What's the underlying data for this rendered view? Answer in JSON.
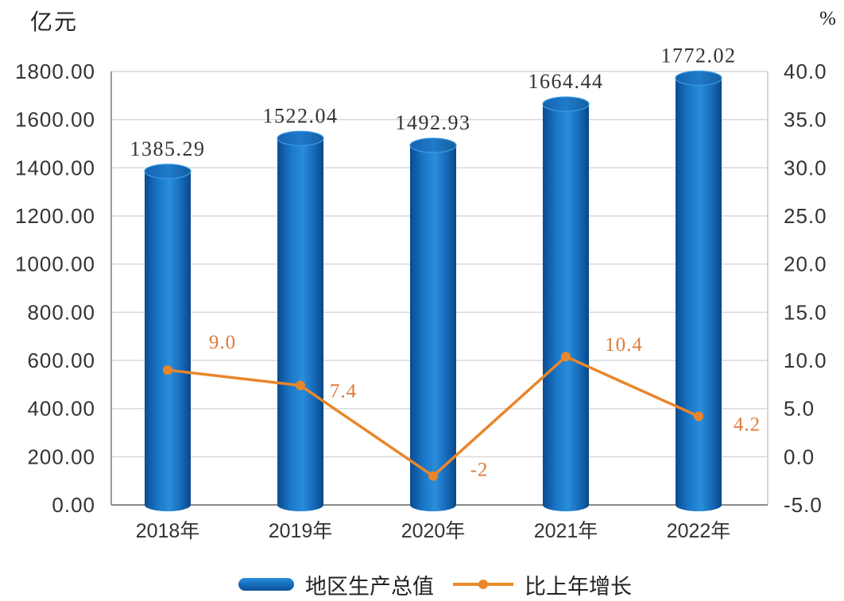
{
  "chart_data": {
    "type": "bar",
    "categories": [
      "2018年",
      "2019年",
      "2020年",
      "2021年",
      "2022年"
    ],
    "series": [
      {
        "name": "地区生产总值",
        "type": "bar",
        "axis": "left",
        "values": [
          1385.29,
          1522.04,
          1492.93,
          1664.44,
          1772.02
        ],
        "labels": [
          "1385.29",
          "1522.04",
          "1492.93",
          "1664.44",
          "1772.02"
        ],
        "color": "#1469b8"
      },
      {
        "name": "比上年增长",
        "type": "line",
        "axis": "right",
        "values": [
          9.0,
          7.4,
          -2,
          10.4,
          4.2
        ],
        "labels": [
          "9.0",
          "7.4",
          "-2",
          "10.4",
          "4.2"
        ],
        "color": "#e8862b"
      }
    ],
    "ylabel": "亿元",
    "y2label": "%",
    "ylim": [
      0,
      1800
    ],
    "y2lim": [
      -5,
      40
    ],
    "yticks": [
      "0.00",
      "200.00",
      "400.00",
      "600.00",
      "800.00",
      "1000.00",
      "1200.00",
      "1400.00",
      "1600.00",
      "1800.00"
    ],
    "y2ticks": [
      "-5.0",
      "0.0",
      "5.0",
      "10.0",
      "15.0",
      "20.0",
      "25.0",
      "30.0",
      "35.0",
      "40.0"
    ],
    "grid": true,
    "legend": "bottom-center"
  }
}
